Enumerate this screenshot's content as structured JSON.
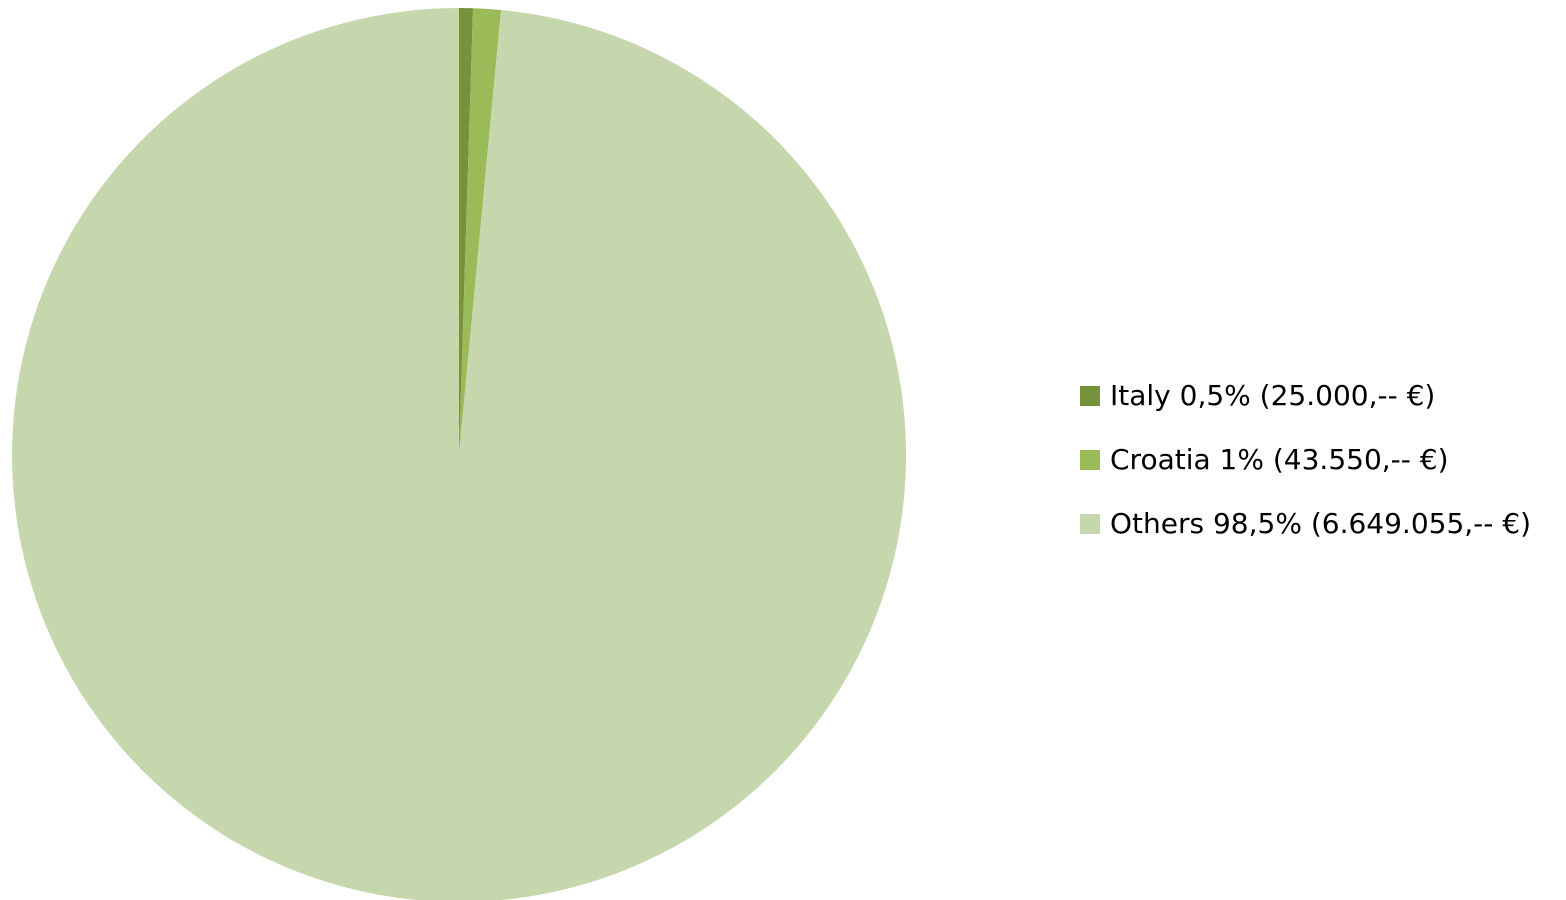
{
  "chart_data": {
    "type": "pie",
    "slices": [
      {
        "label": "Italy 0,5% (25.000,-- €)",
        "value": 0.5,
        "color": "#76923C"
      },
      {
        "label": "Croatia 1% (43.550,-- €)",
        "value": 1,
        "color": "#9BBB59"
      },
      {
        "label": "Others 98,5% (6.649.055,-- €)",
        "value": 98.5,
        "color": "#C6D7AE"
      }
    ],
    "start_angle": "top",
    "direction": "clockwise",
    "legend_position": "right"
  }
}
